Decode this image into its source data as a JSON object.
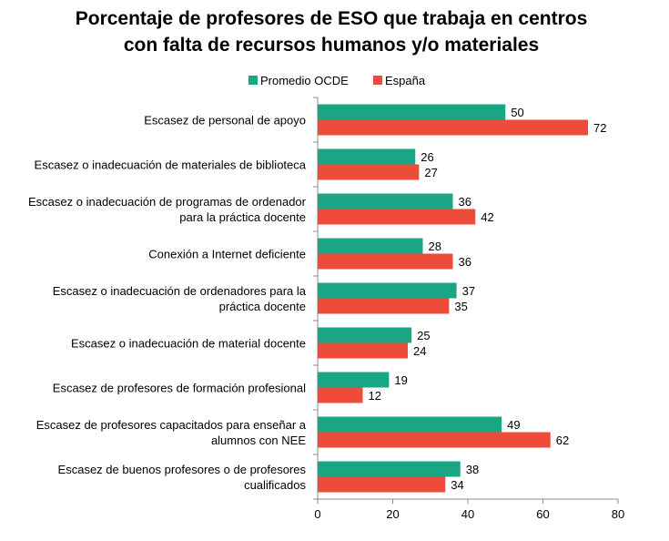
{
  "chart_data": {
    "type": "bar",
    "orientation": "horizontal",
    "title_lines": [
      "Porcentaje de profesores de ESO que trabaja en centros",
      "con falta de recursos humanos y/o materiales"
    ],
    "categories": [
      [
        "Escasez de personal de apoyo"
      ],
      [
        "Escasez o inadecuación de materiales de biblioteca"
      ],
      [
        "Escasez o inadecuación de programas de ordenador",
        "para la práctica docente"
      ],
      [
        "Conexión a Internet deficiente"
      ],
      [
        "Escasez o inadecuación de ordenadores para la",
        "práctica docente"
      ],
      [
        "Escasez o inadecuación de material docente"
      ],
      [
        "Escasez de profesores de formación profesional"
      ],
      [
        "Escasez de profesores capacitados para enseñar a",
        "alumnos con NEE"
      ],
      [
        "Escasez de buenos profesores o de profesores",
        "cualificados"
      ]
    ],
    "series": [
      {
        "name": "Promedio OCDE",
        "color": "#1aa685",
        "values": [
          50,
          26,
          36,
          28,
          37,
          25,
          19,
          49,
          38
        ]
      },
      {
        "name": "España",
        "color": "#ee4c3a",
        "values": [
          72,
          27,
          42,
          36,
          35,
          24,
          12,
          62,
          34
        ]
      }
    ],
    "xlim": [
      0,
      80
    ],
    "xticks": [
      0,
      20,
      40,
      60,
      80
    ],
    "legend_position": "top",
    "grid": false
  }
}
